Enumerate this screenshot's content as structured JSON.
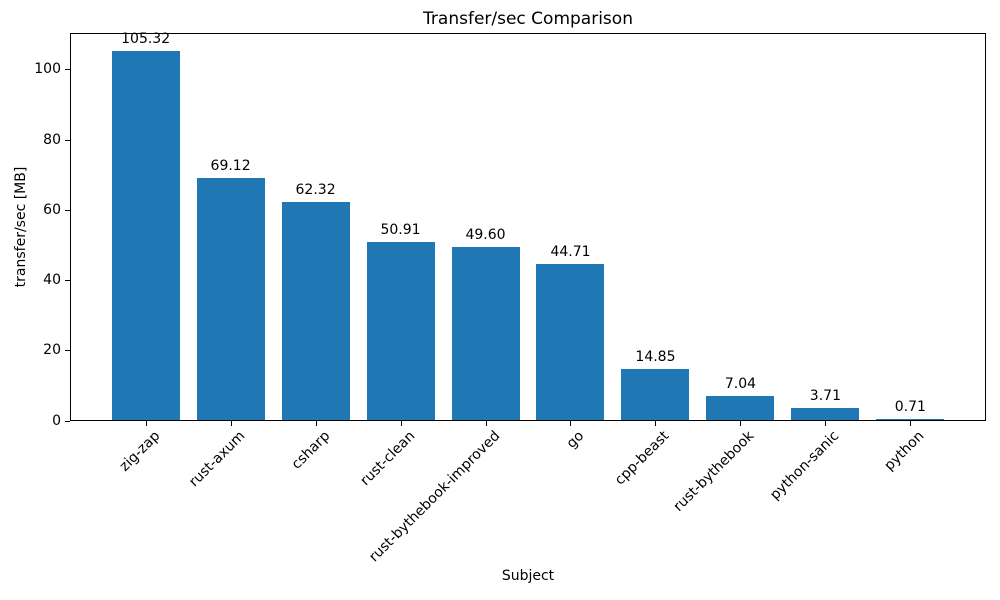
{
  "figure": {
    "background": "#ffffff",
    "text_color": "#000000"
  },
  "chart_data": {
    "type": "bar",
    "title": "Transfer/sec Comparison",
    "xlabel": "Subject",
    "ylabel": "transfer/sec [MB]",
    "categories": [
      "zig-zap",
      "rust-axum",
      "csharp",
      "rust-clean",
      "rust-bythebook-improved",
      "go",
      "cpp-beast",
      "rust-bythebook",
      "python-sanic",
      "python"
    ],
    "values": [
      105.32,
      69.12,
      62.32,
      50.91,
      49.6,
      44.71,
      14.85,
      7.04,
      3.71,
      0.71
    ],
    "bar_labels": [
      "105.32",
      "69.12",
      "62.32",
      "50.91",
      "49.60",
      "44.71",
      "14.85",
      "7.04",
      "3.71",
      "0.71"
    ],
    "ytick_values": [
      0,
      20,
      40,
      60,
      80,
      100
    ],
    "ytick_labels": [
      "0",
      "20",
      "40",
      "60",
      "80",
      "100"
    ],
    "ylim": [
      0,
      110.5
    ],
    "xtick_rotation_deg": 45,
    "grid": false,
    "legend_position": "none",
    "bar_color": "#1f77b4",
    "axis_color": "#000000"
  }
}
